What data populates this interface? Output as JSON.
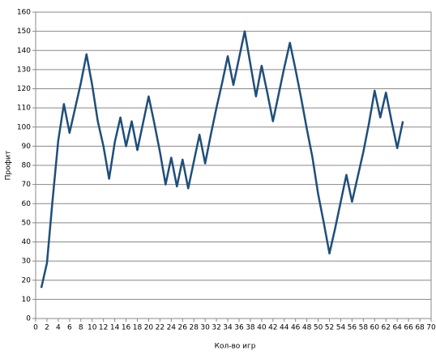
{
  "chart_data": {
    "type": "line",
    "xlabel": "Кол-во игр",
    "ylabel": "Профит",
    "x": [
      1,
      2,
      3,
      4,
      5,
      6,
      7,
      8,
      9,
      10,
      11,
      12,
      13,
      14,
      15,
      16,
      17,
      18,
      19,
      20,
      21,
      22,
      23,
      24,
      25,
      26,
      27,
      28,
      29,
      30,
      31,
      32,
      33,
      34,
      35,
      36,
      37,
      38,
      39,
      40,
      41,
      42,
      43,
      44,
      45,
      46,
      47,
      48,
      49,
      50,
      51,
      52,
      53,
      54,
      55,
      56,
      57,
      58,
      59,
      60,
      61,
      62,
      63,
      64,
      65
    ],
    "series": [
      {
        "color": "#1f4e7a",
        "values": [
          16,
          29,
          62,
          93,
          112,
          97,
          110,
          123,
          138,
          122,
          103,
          90,
          73,
          92,
          105,
          90,
          103,
          88,
          102,
          116,
          102,
          87,
          70,
          84,
          69,
          83,
          68,
          82,
          96,
          81,
          96,
          110,
          123,
          137,
          122,
          136,
          150,
          133,
          116,
          132,
          118,
          103,
          117,
          131,
          144,
          130,
          115,
          99,
          84,
          65,
          50,
          34,
          47,
          61,
          75,
          61,
          74,
          87,
          102,
          119,
          105,
          118,
          103,
          89,
          103
        ]
      }
    ],
    "xlim": [
      0,
      70
    ],
    "xticks": [
      0,
      2,
      4,
      6,
      8,
      10,
      12,
      14,
      16,
      18,
      20,
      22,
      24,
      26,
      28,
      30,
      32,
      34,
      36,
      38,
      40,
      42,
      44,
      46,
      48,
      50,
      52,
      54,
      56,
      58,
      60,
      62,
      64,
      66,
      68,
      70
    ],
    "ylim": [
      0,
      160
    ],
    "yticks": [
      0,
      10,
      20,
      30,
      40,
      50,
      60,
      70,
      80,
      90,
      100,
      110,
      120,
      130,
      140,
      150,
      160
    ],
    "grid": true
  }
}
